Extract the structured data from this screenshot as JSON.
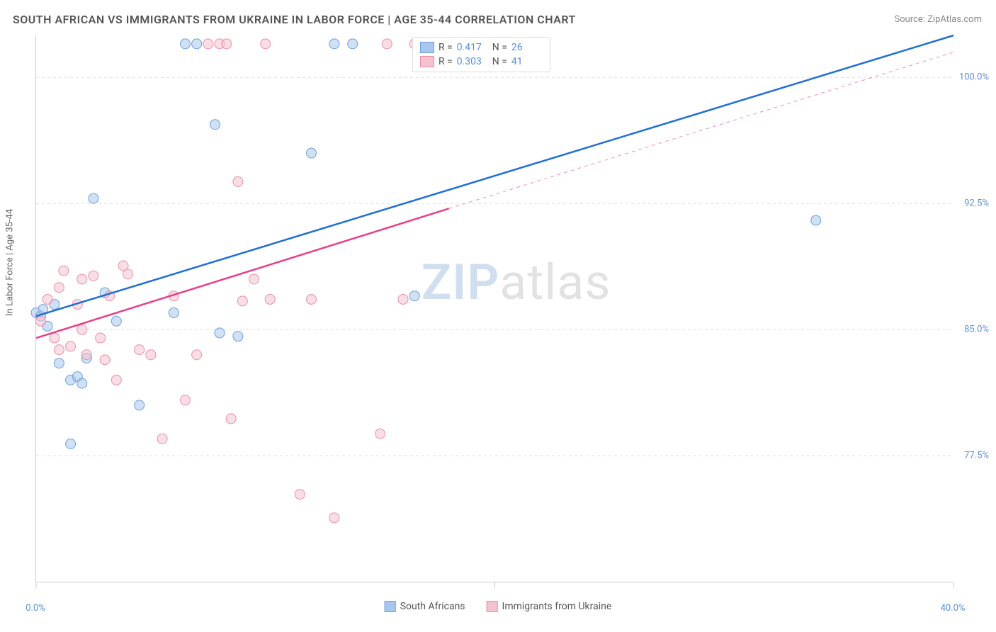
{
  "title": "SOUTH AFRICAN VS IMMIGRANTS FROM UKRAINE IN LABOR FORCE | AGE 35-44 CORRELATION CHART",
  "source": "Source: ZipAtlas.com",
  "watermark_zip": "ZIP",
  "watermark_atlas": "atlas",
  "y_axis_label": "In Labor Force | Age 35-44",
  "chart": {
    "type": "scatter",
    "xlim": [
      0,
      40
    ],
    "ylim": [
      70,
      102.5
    ],
    "x_ticks": [
      0,
      20,
      40
    ],
    "x_tick_labels": [
      "0.0%",
      "",
      "40.0%"
    ],
    "y_ticks": [
      77.5,
      85.0,
      92.5,
      100.0
    ],
    "y_tick_labels": [
      "77.5%",
      "85.0%",
      "92.5%",
      "100.0%"
    ],
    "grid_color": "#dddddd",
    "axis_color": "#cccccc",
    "background_color": "#ffffff",
    "marker_radius": 7,
    "marker_opacity": 0.55,
    "line_width": 2.5,
    "series": [
      {
        "name": "South Africans",
        "color_fill": "#a9c7ec",
        "color_stroke": "#6fa0dc",
        "line_color": "#1f6fd4",
        "R": "0.417",
        "N": "26",
        "points": [
          [
            0.0,
            86.0
          ],
          [
            0.2,
            85.8
          ],
          [
            0.5,
            85.2
          ],
          [
            0.8,
            86.5
          ],
          [
            1.0,
            83.0
          ],
          [
            1.5,
            82.0
          ],
          [
            1.8,
            82.2
          ],
          [
            2.0,
            81.8
          ],
          [
            2.2,
            83.3
          ],
          [
            2.5,
            92.8
          ],
          [
            3.0,
            87.2
          ],
          [
            3.5,
            85.5
          ],
          [
            4.5,
            80.5
          ],
          [
            6.0,
            86.0
          ],
          [
            7.0,
            102.0
          ],
          [
            7.8,
            97.2
          ],
          [
            8.0,
            84.8
          ],
          [
            8.8,
            84.6
          ],
          [
            6.5,
            102.0
          ],
          [
            12.0,
            95.5
          ],
          [
            13.0,
            102.0
          ],
          [
            13.8,
            102.0
          ],
          [
            16.5,
            87.0
          ],
          [
            1.5,
            78.2
          ],
          [
            34.0,
            91.5
          ],
          [
            0.3,
            86.2
          ]
        ],
        "trend": {
          "x1": 0,
          "y1": 85.8,
          "x2": 40,
          "y2": 102.5
        }
      },
      {
        "name": "Immigrants from Ukraine",
        "color_fill": "#f4c2cf",
        "color_stroke": "#eb8fa8",
        "line_color": "#e83e8c",
        "R": "0.303",
        "N": "41",
        "points": [
          [
            0.2,
            85.5
          ],
          [
            0.5,
            86.8
          ],
          [
            0.8,
            84.5
          ],
          [
            1.0,
            87.5
          ],
          [
            1.2,
            88.5
          ],
          [
            1.5,
            84.0
          ],
          [
            1.8,
            86.5
          ],
          [
            2.0,
            88.0
          ],
          [
            2.2,
            83.5
          ],
          [
            2.5,
            88.2
          ],
          [
            2.8,
            84.5
          ],
          [
            3.0,
            83.2
          ],
          [
            3.2,
            87.0
          ],
          [
            3.5,
            82.0
          ],
          [
            4.0,
            88.3
          ],
          [
            4.5,
            83.8
          ],
          [
            5.0,
            83.5
          ],
          [
            5.5,
            78.5
          ],
          [
            6.0,
            87.0
          ],
          [
            6.5,
            80.8
          ],
          [
            7.0,
            83.5
          ],
          [
            7.5,
            102.0
          ],
          [
            8.0,
            102.0
          ],
          [
            8.3,
            102.0
          ],
          [
            8.8,
            93.8
          ],
          [
            9.0,
            86.7
          ],
          [
            9.5,
            88.0
          ],
          [
            10.0,
            102.0
          ],
          [
            10.2,
            86.8
          ],
          [
            8.5,
            79.7
          ],
          [
            11.5,
            75.2
          ],
          [
            12.0,
            86.8
          ],
          [
            13.0,
            73.8
          ],
          [
            15.0,
            78.8
          ],
          [
            15.3,
            102.0
          ],
          [
            16.0,
            86.8
          ],
          [
            16.5,
            102.0
          ],
          [
            17.5,
            102.0
          ],
          [
            3.8,
            88.8
          ],
          [
            1.0,
            83.8
          ],
          [
            2.0,
            85.0
          ]
        ],
        "trend": {
          "x1": 0,
          "y1": 84.5,
          "x2": 18,
          "y2": 92.2
        },
        "trend_extend": {
          "x1": 18,
          "y1": 92.2,
          "x2": 40,
          "y2": 101.5
        }
      }
    ]
  },
  "legend": {
    "series1_label": "South Africans",
    "series2_label": "Immigrants from Ukraine"
  },
  "stats_labels": {
    "R": "R =",
    "N": "N ="
  }
}
